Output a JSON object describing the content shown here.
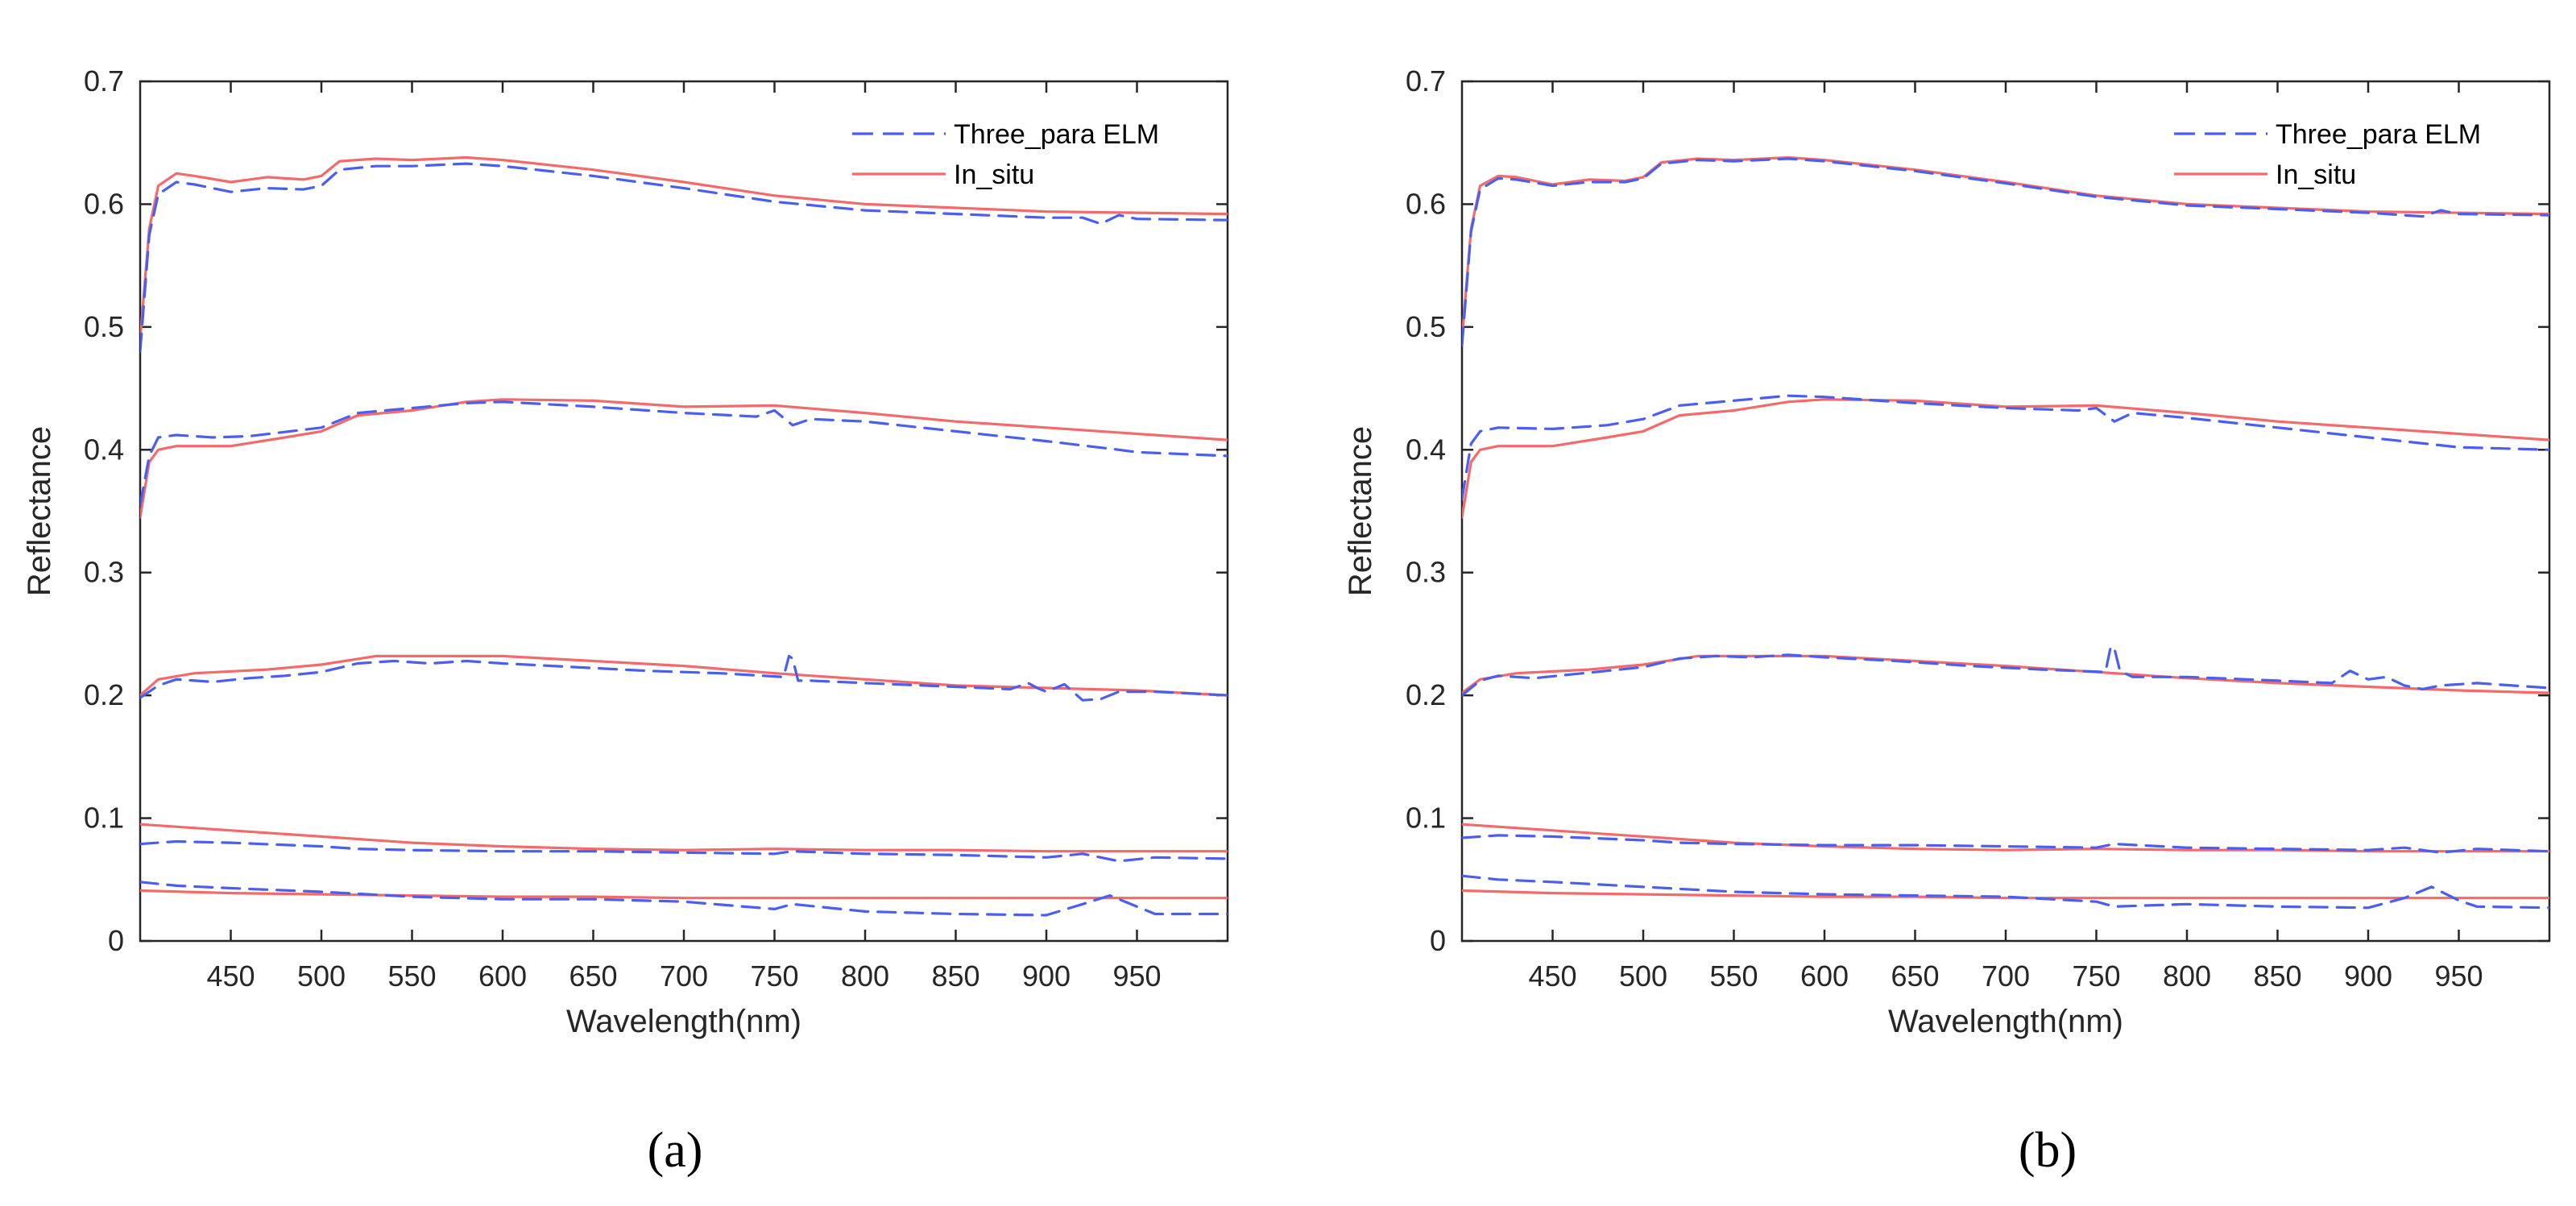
{
  "figure": {
    "captions": [
      "(a)",
      "(b)"
    ]
  },
  "colors": {
    "model": "#4a5ef0",
    "in_situ": "#f36a6a",
    "axis": "#262626"
  },
  "chart_data": [
    {
      "type": "line",
      "panel": "(a)",
      "title": "",
      "xlabel": "Wavelength(nm)",
      "ylabel": "Reflectance",
      "xlim": [
        400,
        1000
      ],
      "ylim": [
        0,
        0.7
      ],
      "xticks": [
        450,
        500,
        550,
        600,
        650,
        700,
        750,
        800,
        850,
        900,
        950
      ],
      "yticks": [
        0,
        0.1,
        0.2,
        0.3,
        0.4,
        0.5,
        0.6,
        0.7
      ],
      "ytick_labels": [
        "0",
        "0.1",
        "0.2",
        "0.3",
        "0.4",
        "0.5",
        "0.6",
        "0.7"
      ],
      "legend": {
        "position": "top-right",
        "entries": [
          {
            "label": "Three_para ELM",
            "style": "dashed",
            "color": "#4a5ef0"
          },
          {
            "label": "In_situ",
            "style": "solid",
            "color": "#f36a6a"
          }
        ]
      },
      "series": [
        {
          "name": "In_situ",
          "target": 1,
          "x": [
            400,
            405,
            410,
            420,
            430,
            450,
            470,
            490,
            500,
            510,
            530,
            550,
            580,
            600,
            650,
            700,
            750,
            800,
            850,
            900,
            950,
            1000
          ],
          "y": [
            0.49,
            0.58,
            0.615,
            0.625,
            0.623,
            0.618,
            0.622,
            0.62,
            0.623,
            0.635,
            0.637,
            0.636,
            0.638,
            0.636,
            0.628,
            0.618,
            0.607,
            0.6,
            0.597,
            0.594,
            0.593,
            0.592
          ]
        },
        {
          "name": "Three_para ELM",
          "target": 1,
          "x": [
            400,
            405,
            410,
            420,
            430,
            450,
            470,
            490,
            500,
            510,
            530,
            550,
            580,
            600,
            650,
            700,
            750,
            800,
            850,
            900,
            920,
            930,
            940,
            950,
            1000
          ],
          "y": [
            0.48,
            0.575,
            0.608,
            0.618,
            0.616,
            0.61,
            0.613,
            0.612,
            0.615,
            0.628,
            0.631,
            0.631,
            0.633,
            0.631,
            0.623,
            0.613,
            0.602,
            0.595,
            0.592,
            0.589,
            0.589,
            0.584,
            0.591,
            0.588,
            0.587
          ]
        },
        {
          "name": "In_situ",
          "target": 2,
          "x": [
            400,
            405,
            410,
            420,
            450,
            480,
            500,
            520,
            550,
            580,
            600,
            650,
            700,
            750,
            800,
            850,
            900,
            950,
            1000
          ],
          "y": [
            0.345,
            0.39,
            0.4,
            0.403,
            0.403,
            0.41,
            0.415,
            0.428,
            0.432,
            0.439,
            0.441,
            0.44,
            0.435,
            0.436,
            0.43,
            0.423,
            0.418,
            0.413,
            0.408
          ]
        },
        {
          "name": "Three_para ELM",
          "target": 2,
          "x": [
            400,
            405,
            410,
            420,
            440,
            460,
            500,
            520,
            550,
            580,
            600,
            650,
            700,
            740,
            750,
            760,
            770,
            800,
            850,
            900,
            940,
            950,
            1000
          ],
          "y": [
            0.355,
            0.395,
            0.41,
            0.412,
            0.41,
            0.411,
            0.418,
            0.43,
            0.434,
            0.438,
            0.439,
            0.435,
            0.43,
            0.427,
            0.432,
            0.42,
            0.425,
            0.423,
            0.415,
            0.407,
            0.4,
            0.398,
            0.395
          ]
        },
        {
          "name": "In_situ",
          "target": 3,
          "x": [
            400,
            410,
            430,
            470,
            500,
            530,
            600,
            650,
            700,
            750,
            800,
            850,
            900,
            950,
            1000
          ],
          "y": [
            0.2,
            0.213,
            0.218,
            0.221,
            0.225,
            0.232,
            0.232,
            0.228,
            0.224,
            0.218,
            0.213,
            0.208,
            0.206,
            0.204,
            0.2
          ]
        },
        {
          "name": "Three_para ELM",
          "target": 3,
          "x": [
            400,
            410,
            420,
            440,
            460,
            480,
            500,
            520,
            540,
            560,
            580,
            600,
            640,
            680,
            720,
            755,
            758,
            760,
            763,
            770,
            800,
            850,
            880,
            890,
            895,
            900,
            910,
            920,
            930,
            940,
            960,
            1000
          ],
          "y": [
            0.198,
            0.208,
            0.213,
            0.211,
            0.214,
            0.216,
            0.219,
            0.226,
            0.228,
            0.226,
            0.228,
            0.226,
            0.223,
            0.22,
            0.218,
            0.215,
            0.232,
            0.23,
            0.212,
            0.212,
            0.21,
            0.207,
            0.205,
            0.21,
            0.206,
            0.203,
            0.209,
            0.196,
            0.197,
            0.203,
            0.203,
            0.2
          ]
        },
        {
          "name": "In_situ",
          "target": 4,
          "x": [
            400,
            450,
            500,
            550,
            600,
            650,
            700,
            750,
            800,
            850,
            900,
            950,
            1000
          ],
          "y": [
            0.095,
            0.09,
            0.085,
            0.08,
            0.077,
            0.075,
            0.074,
            0.075,
            0.074,
            0.074,
            0.073,
            0.073,
            0.073
          ]
        },
        {
          "name": "Three_para ELM",
          "target": 4,
          "x": [
            400,
            420,
            450,
            500,
            520,
            550,
            600,
            650,
            700,
            750,
            760,
            800,
            850,
            900,
            920,
            940,
            960,
            1000
          ],
          "y": [
            0.079,
            0.081,
            0.08,
            0.077,
            0.075,
            0.074,
            0.073,
            0.073,
            0.072,
            0.071,
            0.073,
            0.071,
            0.07,
            0.068,
            0.071,
            0.065,
            0.068,
            0.067
          ]
        },
        {
          "name": "In_situ",
          "target": 5,
          "x": [
            400,
            450,
            500,
            550,
            600,
            650,
            700,
            750,
            800,
            850,
            900,
            950,
            1000
          ],
          "y": [
            0.041,
            0.039,
            0.038,
            0.037,
            0.036,
            0.036,
            0.035,
            0.035,
            0.035,
            0.035,
            0.035,
            0.035,
            0.035
          ]
        },
        {
          "name": "Three_para ELM",
          "target": 5,
          "x": [
            400,
            420,
            450,
            500,
            550,
            600,
            650,
            700,
            750,
            760,
            800,
            850,
            900,
            920,
            935,
            950,
            960,
            1000
          ],
          "y": [
            0.048,
            0.045,
            0.043,
            0.04,
            0.036,
            0.034,
            0.034,
            0.032,
            0.026,
            0.03,
            0.024,
            0.022,
            0.021,
            0.03,
            0.037,
            0.028,
            0.022,
            0.022
          ]
        }
      ]
    },
    {
      "type": "line",
      "panel": "(b)",
      "title": "",
      "xlabel": "Wavelength(nm)",
      "ylabel": "Reflectance",
      "xlim": [
        400,
        1000
      ],
      "ylim": [
        0,
        0.7
      ],
      "xticks": [
        450,
        500,
        550,
        600,
        650,
        700,
        750,
        800,
        850,
        900,
        950
      ],
      "yticks": [
        0,
        0.1,
        0.2,
        0.3,
        0.4,
        0.5,
        0.6,
        0.7
      ],
      "ytick_labels": [
        "0",
        "0.1",
        "0.2",
        "0.3",
        "0.4",
        "0.5",
        "0.6",
        "0.7"
      ],
      "legend": {
        "position": "top-right",
        "entries": [
          {
            "label": "Three_para ELM",
            "style": "dashed",
            "color": "#4a5ef0"
          },
          {
            "label": "In_situ",
            "style": "solid",
            "color": "#f36a6a"
          }
        ]
      },
      "series": [
        {
          "name": "In_situ",
          "target": 1,
          "x": [
            400,
            405,
            410,
            420,
            430,
            450,
            470,
            490,
            500,
            510,
            530,
            550,
            580,
            600,
            650,
            700,
            750,
            800,
            850,
            900,
            950,
            1000
          ],
          "y": [
            0.49,
            0.58,
            0.615,
            0.623,
            0.622,
            0.616,
            0.62,
            0.619,
            0.622,
            0.634,
            0.637,
            0.636,
            0.638,
            0.636,
            0.628,
            0.618,
            0.607,
            0.6,
            0.597,
            0.594,
            0.593,
            0.592
          ]
        },
        {
          "name": "Three_para ELM",
          "target": 1,
          "x": [
            400,
            405,
            410,
            420,
            430,
            450,
            470,
            490,
            500,
            510,
            530,
            550,
            580,
            600,
            650,
            700,
            750,
            800,
            850,
            900,
            930,
            940,
            950,
            1000
          ],
          "y": [
            0.485,
            0.578,
            0.612,
            0.621,
            0.62,
            0.615,
            0.618,
            0.618,
            0.621,
            0.633,
            0.636,
            0.635,
            0.637,
            0.635,
            0.627,
            0.617,
            0.606,
            0.599,
            0.596,
            0.593,
            0.59,
            0.595,
            0.592,
            0.591
          ]
        },
        {
          "name": "In_situ",
          "target": 2,
          "x": [
            400,
            405,
            410,
            420,
            450,
            480,
            500,
            520,
            550,
            580,
            600,
            650,
            700,
            750,
            800,
            850,
            900,
            950,
            1000
          ],
          "y": [
            0.345,
            0.39,
            0.4,
            0.403,
            0.403,
            0.41,
            0.415,
            0.428,
            0.432,
            0.439,
            0.441,
            0.44,
            0.435,
            0.436,
            0.43,
            0.423,
            0.418,
            0.413,
            0.408
          ]
        },
        {
          "name": "Three_para ELM",
          "target": 2,
          "x": [
            400,
            405,
            410,
            420,
            450,
            480,
            500,
            520,
            550,
            580,
            600,
            650,
            700,
            740,
            750,
            760,
            770,
            800,
            850,
            900,
            950,
            1000
          ],
          "y": [
            0.36,
            0.405,
            0.415,
            0.418,
            0.417,
            0.42,
            0.425,
            0.436,
            0.44,
            0.444,
            0.443,
            0.438,
            0.434,
            0.432,
            0.434,
            0.423,
            0.43,
            0.426,
            0.418,
            0.41,
            0.402,
            0.4
          ]
        },
        {
          "name": "In_situ",
          "target": 3,
          "x": [
            400,
            410,
            430,
            470,
            500,
            530,
            600,
            650,
            700,
            750,
            800,
            850,
            900,
            950,
            1000
          ],
          "y": [
            0.202,
            0.213,
            0.218,
            0.221,
            0.225,
            0.232,
            0.232,
            0.228,
            0.224,
            0.219,
            0.214,
            0.21,
            0.207,
            0.204,
            0.202
          ]
        },
        {
          "name": "Three_para ELM",
          "target": 3,
          "x": [
            400,
            410,
            420,
            440,
            460,
            480,
            500,
            520,
            540,
            560,
            580,
            600,
            640,
            680,
            720,
            755,
            758,
            760,
            763,
            770,
            800,
            850,
            880,
            890,
            900,
            910,
            920,
            930,
            940,
            960,
            1000
          ],
          "y": [
            0.2,
            0.212,
            0.216,
            0.214,
            0.217,
            0.22,
            0.223,
            0.23,
            0.232,
            0.231,
            0.233,
            0.231,
            0.228,
            0.224,
            0.221,
            0.219,
            0.24,
            0.238,
            0.22,
            0.215,
            0.215,
            0.212,
            0.21,
            0.22,
            0.213,
            0.215,
            0.208,
            0.205,
            0.208,
            0.21,
            0.206
          ]
        },
        {
          "name": "In_situ",
          "target": 4,
          "x": [
            400,
            450,
            500,
            550,
            600,
            650,
            700,
            750,
            800,
            850,
            900,
            950,
            1000
          ],
          "y": [
            0.095,
            0.09,
            0.085,
            0.08,
            0.077,
            0.075,
            0.074,
            0.075,
            0.074,
            0.074,
            0.073,
            0.073,
            0.073
          ]
        },
        {
          "name": "Three_para ELM",
          "target": 4,
          "x": [
            400,
            420,
            450,
            500,
            520,
            550,
            600,
            650,
            700,
            750,
            760,
            800,
            850,
            900,
            920,
            940,
            960,
            1000
          ],
          "y": [
            0.084,
            0.086,
            0.085,
            0.082,
            0.08,
            0.079,
            0.078,
            0.078,
            0.077,
            0.076,
            0.079,
            0.076,
            0.075,
            0.074,
            0.076,
            0.072,
            0.075,
            0.073
          ]
        },
        {
          "name": "In_situ",
          "target": 5,
          "x": [
            400,
            450,
            500,
            550,
            600,
            650,
            700,
            750,
            800,
            850,
            900,
            950,
            1000
          ],
          "y": [
            0.041,
            0.039,
            0.038,
            0.037,
            0.036,
            0.036,
            0.035,
            0.035,
            0.035,
            0.035,
            0.035,
            0.035,
            0.035
          ]
        },
        {
          "name": "Three_para ELM",
          "target": 5,
          "x": [
            400,
            420,
            450,
            500,
            550,
            600,
            650,
            700,
            750,
            760,
            800,
            850,
            900,
            920,
            935,
            950,
            960,
            1000
          ],
          "y": [
            0.053,
            0.05,
            0.048,
            0.044,
            0.04,
            0.038,
            0.037,
            0.036,
            0.032,
            0.028,
            0.03,
            0.028,
            0.027,
            0.035,
            0.044,
            0.033,
            0.028,
            0.027
          ]
        }
      ]
    }
  ]
}
